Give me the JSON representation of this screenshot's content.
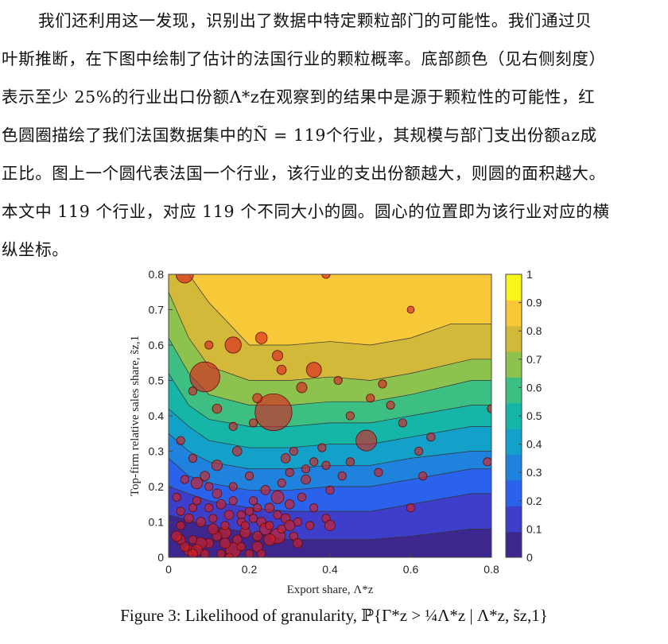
{
  "paragraph": {
    "lines": [
      "我们还利用这一发现，识别出了数据中特定颗粒部门的可能性。我们通过贝",
      "叶斯推断，在下图中绘制了估计的法国行业的颗粒概率。底部颜色（见右侧刻度）",
      "表示至少 25%的行业出口份额Λ*z在观察到的结果中是源于颗粒性的可能性，红",
      "色圆圈描绘了我们法国数据集中的Ñ = 119个行业，其规模与部门支出份额az成",
      "正比。图上一个圆代表法国一个行业，该行业的支出份额越大，则圆的面积越大。",
      "本文中 119 个行业，对应 119 个不同大小的圆。圆心的位置即为该行业对应的横",
      "纵坐标。"
    ]
  },
  "caption": "Figure 3: Likelihood of granularity, ℙ{Γ*z > ¼Λ*z | Λ*z, s̃z,1}",
  "chart_data": {
    "type": "heatmap",
    "xlabel": "Export share, Λ*z",
    "ylabel": "Top-firm relative sales share, s̃z,1",
    "xlim": [
      0,
      0.8
    ],
    "ylim": [
      0,
      0.8
    ],
    "x_ticks": [
      "0",
      "0.2",
      "0.4",
      "0.6",
      "0.8"
    ],
    "y_ticks": [
      "0",
      "0.1",
      "0.2",
      "0.3",
      "0.4",
      "0.5",
      "0.6",
      "0.7",
      "0.8"
    ],
    "colorbar_ticks": [
      "0",
      "0.1",
      "0.2",
      "0.3",
      "0.4",
      "0.5",
      "0.6",
      "0.7",
      "0.8",
      "0.9",
      "1"
    ],
    "contour_levels": [
      0.1,
      0.2,
      0.3,
      0.4,
      0.5,
      0.6,
      0.7,
      0.8,
      0.9
    ],
    "level_boundaries": [
      {
        "level": 0.1,
        "points": [
          [
            0,
            0.12
          ],
          [
            0.1,
            0.09
          ],
          [
            0.2,
            0.07
          ],
          [
            0.3,
            0.05
          ],
          [
            0.4,
            0.05
          ],
          [
            0.5,
            0.05
          ],
          [
            0.6,
            0.06
          ],
          [
            0.75,
            0.08
          ],
          [
            0.8,
            0.08
          ]
        ]
      },
      {
        "level": 0.2,
        "points": [
          [
            0,
            0.2
          ],
          [
            0.1,
            0.16
          ],
          [
            0.2,
            0.14
          ],
          [
            0.3,
            0.13
          ],
          [
            0.4,
            0.13
          ],
          [
            0.5,
            0.13
          ],
          [
            0.6,
            0.15
          ],
          [
            0.75,
            0.18
          ],
          [
            0.8,
            0.18
          ]
        ]
      },
      {
        "level": 0.3,
        "points": [
          [
            0,
            0.28
          ],
          [
            0.05,
            0.23
          ],
          [
            0.1,
            0.21
          ],
          [
            0.2,
            0.19
          ],
          [
            0.3,
            0.19
          ],
          [
            0.4,
            0.2
          ],
          [
            0.5,
            0.2
          ],
          [
            0.6,
            0.22
          ],
          [
            0.75,
            0.25
          ],
          [
            0.8,
            0.25
          ]
        ]
      },
      {
        "level": 0.4,
        "points": [
          [
            0,
            0.35
          ],
          [
            0.05,
            0.3
          ],
          [
            0.1,
            0.27
          ],
          [
            0.2,
            0.25
          ],
          [
            0.3,
            0.25
          ],
          [
            0.4,
            0.26
          ],
          [
            0.5,
            0.26
          ],
          [
            0.6,
            0.28
          ],
          [
            0.75,
            0.3
          ],
          [
            0.8,
            0.3
          ]
        ]
      },
      {
        "level": 0.5,
        "points": [
          [
            0,
            0.42
          ],
          [
            0.05,
            0.37
          ],
          [
            0.1,
            0.33
          ],
          [
            0.2,
            0.31
          ],
          [
            0.3,
            0.31
          ],
          [
            0.4,
            0.32
          ],
          [
            0.5,
            0.32
          ],
          [
            0.6,
            0.34
          ],
          [
            0.75,
            0.37
          ],
          [
            0.8,
            0.37
          ]
        ]
      },
      {
        "level": 0.6,
        "points": [
          [
            0,
            0.52
          ],
          [
            0.05,
            0.43
          ],
          [
            0.1,
            0.39
          ],
          [
            0.2,
            0.37
          ],
          [
            0.3,
            0.37
          ],
          [
            0.4,
            0.38
          ],
          [
            0.5,
            0.38
          ],
          [
            0.6,
            0.4
          ],
          [
            0.75,
            0.43
          ],
          [
            0.8,
            0.43
          ]
        ]
      },
      {
        "level": 0.7,
        "points": [
          [
            0,
            0.62
          ],
          [
            0.05,
            0.52
          ],
          [
            0.1,
            0.46
          ],
          [
            0.2,
            0.43
          ],
          [
            0.3,
            0.43
          ],
          [
            0.4,
            0.44
          ],
          [
            0.5,
            0.44
          ],
          [
            0.6,
            0.46
          ],
          [
            0.75,
            0.5
          ],
          [
            0.8,
            0.5
          ]
        ]
      },
      {
        "level": 0.8,
        "points": [
          [
            0,
            0.75
          ],
          [
            0.05,
            0.62
          ],
          [
            0.1,
            0.54
          ],
          [
            0.2,
            0.5
          ],
          [
            0.3,
            0.5
          ],
          [
            0.4,
            0.51
          ],
          [
            0.5,
            0.5
          ],
          [
            0.6,
            0.52
          ],
          [
            0.75,
            0.56
          ],
          [
            0.8,
            0.56
          ]
        ]
      },
      {
        "level": 0.9,
        "points": [
          [
            0.05,
            0.8
          ],
          [
            0.1,
            0.72
          ],
          [
            0.15,
            0.66
          ],
          [
            0.2,
            0.6
          ],
          [
            0.3,
            0.6
          ],
          [
            0.4,
            0.61
          ],
          [
            0.5,
            0.6
          ],
          [
            0.6,
            0.62
          ],
          [
            0.7,
            0.66
          ],
          [
            0.8,
            0.66
          ]
        ]
      }
    ],
    "industries": [
      [
        0.04,
        0.8,
        1.1
      ],
      [
        0.09,
        0.51,
        2.2
      ],
      [
        0.26,
        0.41,
        2.8
      ],
      [
        0.49,
        0.33,
        1.4
      ],
      [
        0.16,
        0.6,
        1.0
      ],
      [
        0.36,
        0.53,
        0.9
      ],
      [
        0.23,
        0.62,
        0.6
      ],
      [
        0.27,
        0.57,
        0.5
      ],
      [
        0.22,
        0.45,
        0.4
      ],
      [
        0.28,
        0.53,
        0.4
      ],
      [
        0.33,
        0.48,
        0.5
      ],
      [
        0.42,
        0.5,
        0.3
      ],
      [
        0.1,
        0.6,
        0.3
      ],
      [
        0.06,
        0.47,
        0.3
      ],
      [
        0.12,
        0.42,
        0.4
      ],
      [
        0.16,
        0.37,
        0.3
      ],
      [
        0.21,
        0.38,
        0.3
      ],
      [
        0.17,
        0.3,
        0.4
      ],
      [
        0.12,
        0.26,
        0.5
      ],
      [
        0.09,
        0.23,
        0.4
      ],
      [
        0.06,
        0.28,
        0.3
      ],
      [
        0.03,
        0.33,
        0.3
      ],
      [
        0.04,
        0.22,
        0.3
      ],
      [
        0.07,
        0.21,
        0.6
      ],
      [
        0.12,
        0.18,
        0.4
      ],
      [
        0.16,
        0.2,
        0.3
      ],
      [
        0.2,
        0.23,
        0.3
      ],
      [
        0.24,
        0.19,
        0.4
      ],
      [
        0.28,
        0.21,
        0.3
      ],
      [
        0.3,
        0.24,
        0.3
      ],
      [
        0.34,
        0.22,
        0.4
      ],
      [
        0.36,
        0.27,
        0.3
      ],
      [
        0.38,
        0.31,
        0.3
      ],
      [
        0.27,
        0.17,
        0.7
      ],
      [
        0.21,
        0.16,
        0.3
      ],
      [
        0.25,
        0.14,
        0.4
      ],
      [
        0.3,
        0.15,
        0.4
      ],
      [
        0.33,
        0.17,
        0.3
      ],
      [
        0.36,
        0.14,
        0.3
      ],
      [
        0.4,
        0.19,
        0.3
      ],
      [
        0.43,
        0.23,
        0.3
      ],
      [
        0.18,
        0.12,
        0.3
      ],
      [
        0.27,
        0.12,
        0.3
      ],
      [
        0.29,
        0.11,
        0.4
      ],
      [
        0.32,
        0.1,
        0.3
      ],
      [
        0.35,
        0.09,
        0.3
      ],
      [
        0.39,
        0.11,
        0.3
      ],
      [
        0.4,
        0.09,
        0.5
      ],
      [
        0.08,
        0.1,
        0.4
      ],
      [
        0.11,
        0.11,
        0.3
      ],
      [
        0.15,
        0.12,
        0.4
      ],
      [
        0.18,
        0.1,
        0.3
      ],
      [
        0.21,
        0.11,
        0.3
      ],
      [
        0.23,
        0.1,
        0.4
      ],
      [
        0.24,
        0.08,
        0.6
      ],
      [
        0.27,
        0.06,
        0.9
      ],
      [
        0.25,
        0.05,
        0.6
      ],
      [
        0.3,
        0.09,
        0.5
      ],
      [
        0.31,
        0.06,
        0.3
      ],
      [
        0.32,
        0.04,
        0.4
      ],
      [
        0.22,
        0.03,
        0.5
      ],
      [
        0.22,
        0.06,
        0.4
      ],
      [
        0.19,
        0.07,
        0.5
      ],
      [
        0.17,
        0.05,
        0.4
      ],
      [
        0.16,
        0.02,
        0.9
      ],
      [
        0.18,
        0.03,
        0.3
      ],
      [
        0.14,
        0.04,
        0.5
      ],
      [
        0.14,
        0.07,
        0.6
      ],
      [
        0.12,
        0.06,
        0.4
      ],
      [
        0.11,
        0.08,
        0.5
      ],
      [
        0.1,
        0.04,
        0.4
      ],
      [
        0.08,
        0.04,
        0.6
      ],
      [
        0.06,
        0.05,
        0.3
      ],
      [
        0.05,
        0.02,
        0.5
      ],
      [
        0.07,
        0.02,
        0.6
      ],
      [
        0.04,
        0.03,
        0.4
      ],
      [
        0.03,
        0.05,
        0.4
      ],
      [
        0.02,
        0.06,
        0.5
      ],
      [
        0.03,
        0.09,
        0.3
      ],
      [
        0.05,
        0.11,
        0.4
      ],
      [
        0.06,
        0.14,
        0.3
      ],
      [
        0.1,
        0.14,
        0.3
      ],
      [
        0.13,
        0.15,
        0.4
      ],
      [
        0.16,
        0.16,
        0.3
      ],
      [
        0.2,
        0.13,
        0.3
      ],
      [
        0.22,
        0.14,
        0.3
      ],
      [
        0.25,
        0.09,
        0.3
      ],
      [
        0.28,
        0.08,
        0.3
      ],
      [
        0.2,
        0.01,
        0.3
      ],
      [
        0.23,
        0.01,
        0.3
      ],
      [
        0.13,
        0.01,
        0.3
      ],
      [
        0.09,
        0.01,
        0.3
      ],
      [
        0.06,
        0.01,
        0.4
      ],
      [
        0.15,
        0.0,
        0.3
      ],
      [
        0.31,
        0.3,
        0.3
      ],
      [
        0.29,
        0.28,
        0.4
      ],
      [
        0.34,
        0.25,
        0.3
      ],
      [
        0.39,
        0.26,
        0.3
      ],
      [
        0.45,
        0.27,
        0.3
      ],
      [
        0.52,
        0.24,
        0.3
      ],
      [
        0.6,
        0.14,
        0.3
      ],
      [
        0.62,
        0.3,
        0.3
      ],
      [
        0.63,
        0.23,
        0.3
      ],
      [
        0.8,
        0.42,
        0.3
      ],
      [
        0.79,
        0.27,
        0.3
      ],
      [
        0.65,
        0.34,
        0.3
      ],
      [
        0.58,
        0.38,
        0.3
      ],
      [
        0.5,
        0.45,
        0.3
      ],
      [
        0.53,
        0.49,
        0.3
      ],
      [
        0.55,
        0.43,
        0.3
      ],
      [
        0.39,
        0.8,
        0.3
      ],
      [
        0.6,
        0.7,
        0.2
      ],
      [
        0.45,
        0.4,
        0.3
      ],
      [
        0.03,
        0.13,
        0.3
      ],
      [
        0.02,
        0.17,
        0.3
      ],
      [
        0.07,
        0.16,
        0.3
      ],
      [
        0.1,
        0.2,
        0.3
      ],
      [
        0.14,
        0.09,
        0.3
      ],
      [
        0.19,
        0.09,
        0.3
      ]
    ]
  }
}
